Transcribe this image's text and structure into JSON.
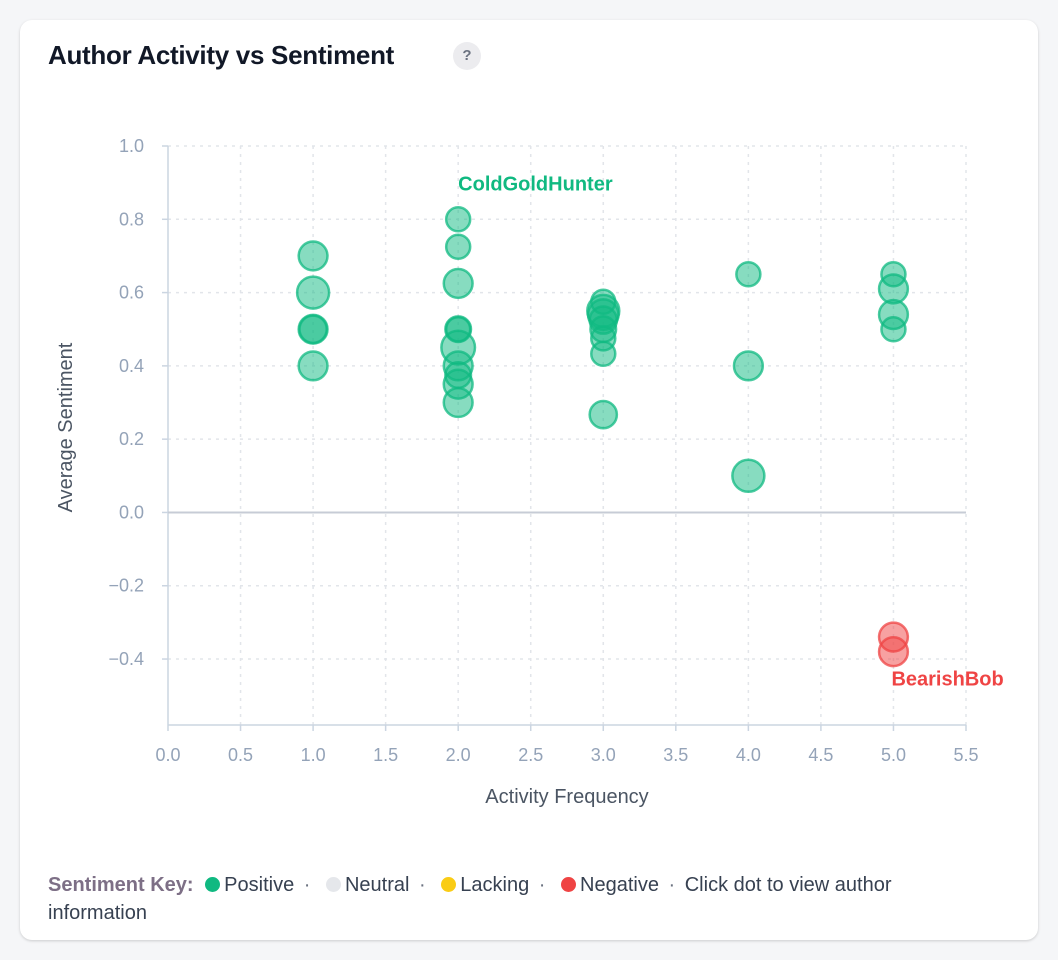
{
  "title": "Author Activity vs Sentiment",
  "help_icon": "?",
  "colors": {
    "positive": "#10b981",
    "neutral": "#e5e7eb",
    "lacking": "#facc15",
    "negative": "#ef4444",
    "axis_text": "#94a3b8",
    "label_text": "#4b5563"
  },
  "chart_data": {
    "type": "scatter",
    "xlabel": "Activity Frequency",
    "ylabel": "Average Sentiment",
    "xlim": [
      0,
      5.5
    ],
    "ylim": [
      -0.58,
      1.0
    ],
    "x_ticks": [
      "0.0",
      "0.5",
      "1.0",
      "1.5",
      "2.0",
      "2.5",
      "3.0",
      "3.5",
      "4.0",
      "4.5",
      "5.0",
      "5.5"
    ],
    "y_ticks": [
      "1.0",
      "0.8",
      "0.6",
      "0.4",
      "0.2",
      "0.0",
      "−0.2",
      "−0.4"
    ],
    "grid": true,
    "points": [
      {
        "x": 1,
        "y": 0.7,
        "sentiment": "positive",
        "size": 0.9
      },
      {
        "x": 1,
        "y": 0.6,
        "sentiment": "positive",
        "size": 1.0
      },
      {
        "x": 1,
        "y": 0.5,
        "sentiment": "positive",
        "size": 0.9
      },
      {
        "x": 1,
        "y": 0.5,
        "sentiment": "positive",
        "size": 0.85
      },
      {
        "x": 1,
        "y": 0.4,
        "sentiment": "positive",
        "size": 0.9
      },
      {
        "x": 2,
        "y": 0.8,
        "sentiment": "positive",
        "size": 0.75,
        "author": "ColdGoldHunter"
      },
      {
        "x": 2,
        "y": 0.725,
        "sentiment": "positive",
        "size": 0.75
      },
      {
        "x": 2,
        "y": 0.625,
        "sentiment": "positive",
        "size": 0.9
      },
      {
        "x": 2,
        "y": 0.5,
        "sentiment": "positive",
        "size": 0.8
      },
      {
        "x": 2,
        "y": 0.5,
        "sentiment": "positive",
        "size": 0.75
      },
      {
        "x": 2,
        "y": 0.45,
        "sentiment": "positive",
        "size": 1.05
      },
      {
        "x": 2,
        "y": 0.4,
        "sentiment": "positive",
        "size": 0.9
      },
      {
        "x": 2,
        "y": 0.375,
        "sentiment": "positive",
        "size": 0.8
      },
      {
        "x": 2,
        "y": 0.35,
        "sentiment": "positive",
        "size": 0.9
      },
      {
        "x": 2,
        "y": 0.3,
        "sentiment": "positive",
        "size": 0.9
      },
      {
        "x": 3,
        "y": 0.575,
        "sentiment": "positive",
        "size": 0.75
      },
      {
        "x": 3,
        "y": 0.55,
        "sentiment": "positive",
        "size": 1.0
      },
      {
        "x": 3,
        "y": 0.54,
        "sentiment": "positive",
        "size": 0.95
      },
      {
        "x": 3,
        "y": 0.525,
        "sentiment": "positive",
        "size": 0.85
      },
      {
        "x": 3,
        "y": 0.5,
        "sentiment": "positive",
        "size": 0.8
      },
      {
        "x": 3,
        "y": 0.475,
        "sentiment": "positive",
        "size": 0.75
      },
      {
        "x": 3,
        "y": 0.433,
        "sentiment": "positive",
        "size": 0.75
      },
      {
        "x": 3,
        "y": 0.267,
        "sentiment": "positive",
        "size": 0.85
      },
      {
        "x": 4,
        "y": 0.65,
        "sentiment": "positive",
        "size": 0.75
      },
      {
        "x": 4,
        "y": 0.4,
        "sentiment": "positive",
        "size": 0.9
      },
      {
        "x": 4,
        "y": 0.1,
        "sentiment": "positive",
        "size": 1.0
      },
      {
        "x": 5,
        "y": 0.65,
        "sentiment": "positive",
        "size": 0.75
      },
      {
        "x": 5,
        "y": 0.61,
        "sentiment": "positive",
        "size": 0.9
      },
      {
        "x": 5,
        "y": 0.54,
        "sentiment": "positive",
        "size": 0.9
      },
      {
        "x": 5,
        "y": 0.5,
        "sentiment": "positive",
        "size": 0.75
      },
      {
        "x": 5,
        "y": -0.34,
        "sentiment": "negative",
        "size": 0.9
      },
      {
        "x": 5,
        "y": -0.38,
        "sentiment": "negative",
        "size": 0.9,
        "author": "BearishBob"
      }
    ],
    "annotations": [
      {
        "text": "ColdGoldHunter",
        "x": 2,
        "y": 0.8,
        "sentiment": "positive"
      },
      {
        "text": "BearishBob",
        "x": 5,
        "y": -0.38,
        "sentiment": "negative"
      }
    ]
  },
  "legend": {
    "title": "Sentiment Key:",
    "items": [
      {
        "label": "Positive",
        "color_key": "positive"
      },
      {
        "label": "Neutral",
        "color_key": "neutral"
      },
      {
        "label": "Lacking",
        "color_key": "lacking"
      },
      {
        "label": "Negative",
        "color_key": "negative"
      }
    ],
    "separator": "·",
    "hint": "Click dot to view author information"
  }
}
